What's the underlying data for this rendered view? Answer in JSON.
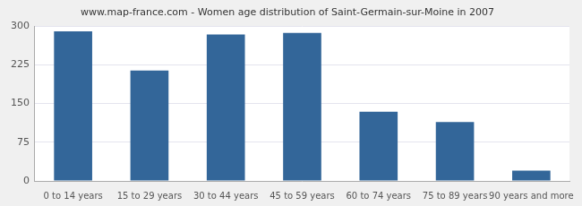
{
  "chart_data": {
    "type": "bar",
    "title": "www.map-france.com - Women age distribution of Saint-Germain-sur-Moine in 2007",
    "categories": [
      "0 to 14 years",
      "15 to 29 years",
      "30 to 44 years",
      "45 to 59 years",
      "60 to 74 years",
      "75 to 89 years",
      "90 years and more"
    ],
    "values": [
      290,
      214,
      284,
      287,
      134,
      114,
      20
    ],
    "color": "#336699",
    "ylim": [
      0,
      300
    ],
    "yticks": [
      0,
      75,
      150,
      225,
      300
    ],
    "grid": true
  }
}
